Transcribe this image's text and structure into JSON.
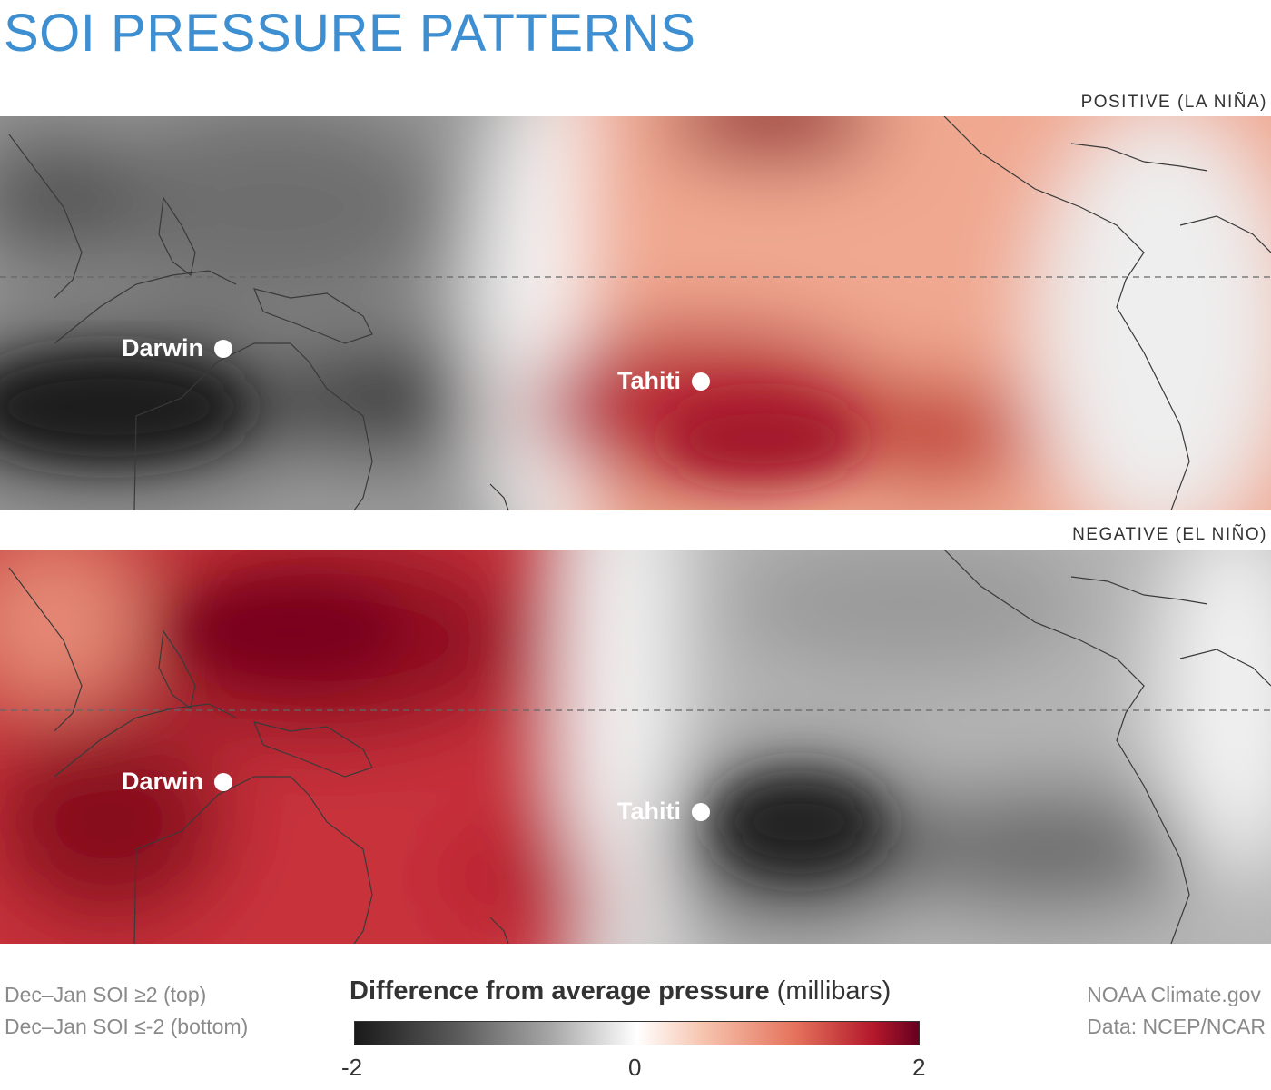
{
  "title": "SOI PRESSURE PATTERNS",
  "panels": [
    {
      "label": "POSITIVE (LA NIÑA)",
      "pattern": "positive"
    },
    {
      "label": "NEGATIVE (EL NIÑO)",
      "pattern": "negative"
    }
  ],
  "stations": {
    "darwin": "Darwin",
    "tahiti": "Tahiti"
  },
  "footer": {
    "left_line1": "Dec–Jan SOI ≥2 (top)",
    "left_line2": "Dec–Jan SOI ≤-2 (bottom)",
    "right_line1": "NOAA Climate.gov",
    "right_line2": "Data: NCEP/NCAR"
  },
  "legend": {
    "title_bold": "Difference from average pressure",
    "title_unit": "(millibars)",
    "ticks": [
      "-2",
      "0",
      "2"
    ],
    "min": -2,
    "max": 2
  },
  "colors": {
    "title": "#3d8fd1",
    "negative_extreme": "#1a1a1a",
    "neutral": "#ffffff",
    "positive_extreme": "#67001f"
  }
}
